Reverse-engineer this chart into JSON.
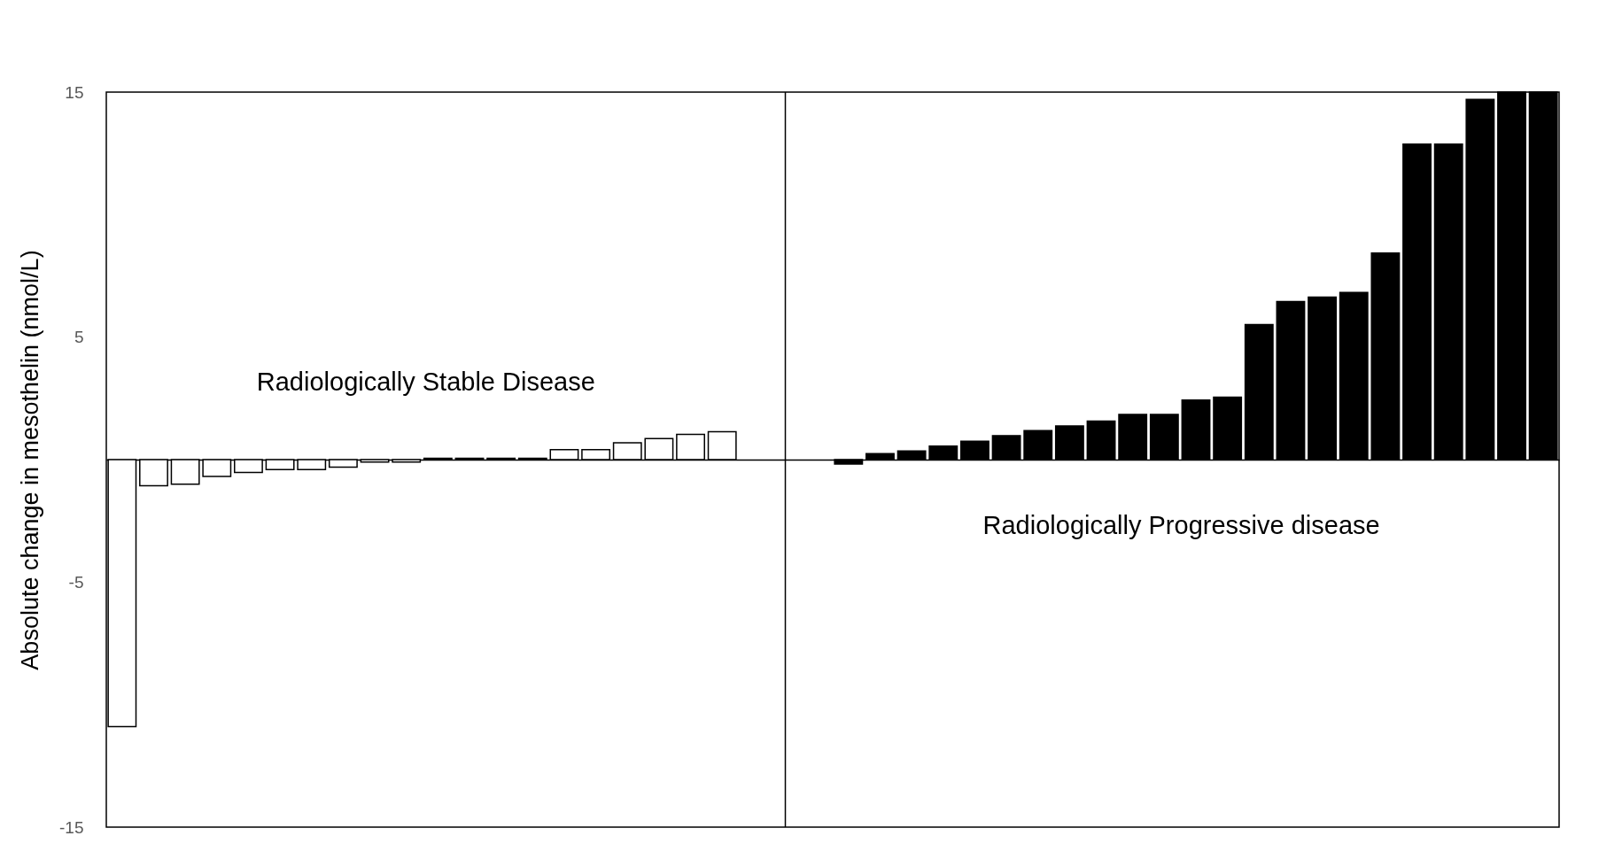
{
  "chart_data": {
    "type": "bar",
    "ylabel": "Absolute change in mesothelin  (nmol/L)",
    "categories": [
      null,
      null,
      null,
      null,
      null,
      null,
      null,
      null,
      null,
      null,
      null,
      null,
      null,
      null,
      null,
      null,
      null,
      null,
      null,
      null,
      null,
      null,
      null,
      null,
      null,
      null,
      null,
      null,
      null,
      null,
      null,
      null,
      null,
      null,
      null,
      null,
      null,
      null,
      null,
      null,
      null,
      null,
      null,
      null,
      null,
      null
    ],
    "tick_labels": "y",
    "ylim": [
      -15,
      15
    ],
    "yticks": [
      -15,
      -5,
      5,
      15
    ],
    "grid": false,
    "series": [
      {
        "color": "#ffffff",
        "values": [
          -10.9,
          -1.07,
          -1.0,
          -0.69,
          -0.52,
          -0.41,
          -0.41,
          -0.31,
          -0.1,
          -0.1,
          0.05,
          0.05,
          0.05,
          0.05,
          0.41,
          0.41,
          0.69,
          0.86,
          1.03,
          1.14,
          null,
          null,
          null,
          null,
          null,
          null,
          null,
          null,
          null,
          null,
          null,
          null,
          null,
          null,
          null,
          null,
          null,
          null,
          null,
          null,
          null,
          null,
          null,
          null,
          null,
          null
        ]
      },
      {
        "color": "#000000",
        "values": [
          null,
          null,
          null,
          null,
          null,
          null,
          null,
          null,
          null,
          null,
          null,
          null,
          null,
          null,
          null,
          null,
          null,
          null,
          null,
          null,
          null,
          null,
          null,
          -0.18,
          0.24,
          0.35,
          0.55,
          0.75,
          0.98,
          1.18,
          1.37,
          1.57,
          1.84,
          1.84,
          2.43,
          2.55,
          5.51,
          6.45,
          6.63,
          6.82,
          8.43,
          12.88,
          12.88,
          14.7,
          15,
          15
        ]
      }
    ],
    "annotations": [
      "Radiologically Stable Disease",
      "Radiologically Progressive disease"
    ]
  }
}
